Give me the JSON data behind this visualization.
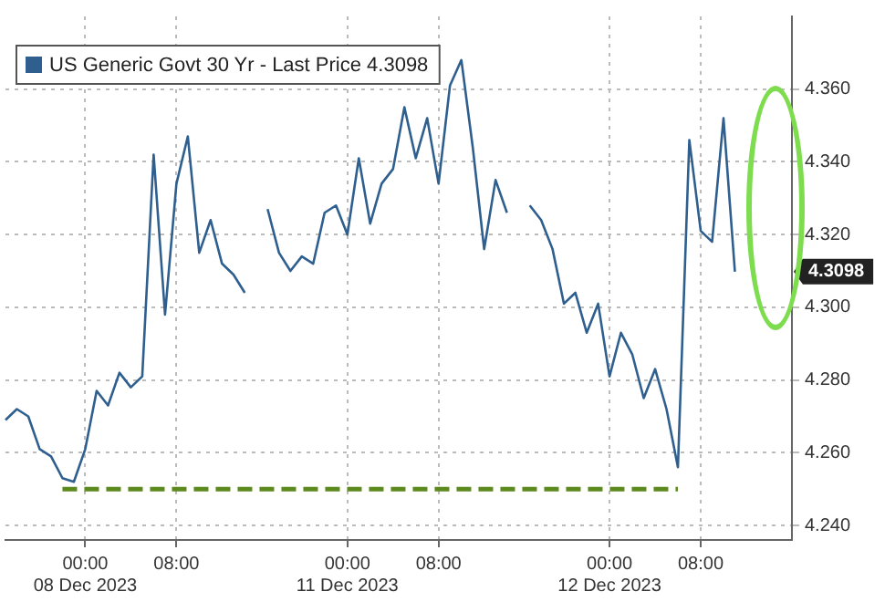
{
  "chart_data": {
    "type": "line",
    "legend": "top left",
    "grid": true,
    "marker": "none",
    "ylim": [
      4.236,
      4.38
    ],
    "categories": [
      null,
      null,
      null,
      null,
      null,
      null,
      null,
      "00:00\n08 Dec 2023",
      null,
      null,
      null,
      null,
      null,
      null,
      null,
      "08:00",
      null,
      null,
      null,
      null,
      null,
      null,
      null,
      null,
      null,
      null,
      null,
      null,
      null,
      null,
      "00:00\n11 Dec 2023",
      null,
      null,
      null,
      null,
      null,
      null,
      null,
      "08:00",
      null,
      null,
      null,
      null,
      null,
      null,
      null,
      null,
      null,
      null,
      null,
      null,
      null,
      null,
      "00:00\n12 Dec 2023",
      null,
      null,
      null,
      null,
      null,
      null,
      null,
      "08:00",
      null,
      null,
      null,
      null,
      null,
      null,
      null,
      null
    ],
    "yticks": [
      {
        "value": 4.24,
        "label": "4.240"
      },
      {
        "value": 4.26,
        "label": "4.260"
      },
      {
        "value": 4.28,
        "label": "4.280"
      },
      {
        "value": 4.3,
        "label": "4.300"
      },
      {
        "value": 4.32,
        "label": "4.320"
      },
      {
        "value": 4.34,
        "label": "4.340"
      },
      {
        "value": 4.36,
        "label": "4.360"
      }
    ],
    "annotations": [
      {
        "text": "4.3098",
        "y": 4.3098
      }
    ],
    "series": [
      {
        "name": "US Generic Govt 30 Yr - Last Price 4.3098",
        "color": "#2f5f8f",
        "line_style": "solid",
        "values": [
          4.269,
          4.272,
          4.27,
          4.261,
          4.259,
          4.253,
          4.252,
          4.261,
          4.277,
          4.273,
          4.282,
          4.278,
          4.281,
          4.342,
          4.298,
          4.334,
          4.347,
          4.315,
          4.324,
          4.312,
          4.309,
          4.304,
          null,
          4.327,
          4.315,
          4.31,
          4.314,
          4.312,
          4.326,
          4.328,
          4.32,
          4.341,
          4.323,
          4.334,
          4.338,
          4.355,
          4.341,
          4.352,
          4.334,
          4.361,
          4.368,
          4.344,
          4.316,
          4.335,
          4.326,
          null,
          4.328,
          4.324,
          4.316,
          4.301,
          4.304,
          4.293,
          4.301,
          4.281,
          4.293,
          4.287,
          4.275,
          4.283,
          4.272,
          4.256,
          4.346,
          4.321,
          4.318,
          4.352,
          4.3098,
          null,
          null,
          null,
          null,
          null
        ]
      },
      {
        "color": "#5c8a1e",
        "line_style": "dashed",
        "values": [
          null,
          null,
          null,
          null,
          null,
          4.25,
          4.25,
          4.25,
          4.25,
          4.25,
          4.25,
          4.25,
          4.25,
          4.25,
          4.25,
          4.25,
          4.25,
          4.25,
          4.25,
          4.25,
          4.25,
          4.25,
          4.25,
          4.25,
          4.25,
          4.25,
          4.25,
          4.25,
          4.25,
          4.25,
          4.25,
          4.25,
          4.25,
          4.25,
          4.25,
          4.25,
          4.25,
          4.25,
          4.25,
          4.25,
          4.25,
          4.25,
          4.25,
          4.25,
          4.25,
          4.25,
          4.25,
          4.25,
          4.25,
          4.25,
          4.25,
          4.25,
          4.25,
          4.25,
          4.25,
          4.25,
          4.25,
          4.25,
          4.25,
          4.25,
          null,
          null,
          null,
          null,
          null,
          null,
          null,
          null,
          null,
          null
        ]
      }
    ]
  }
}
